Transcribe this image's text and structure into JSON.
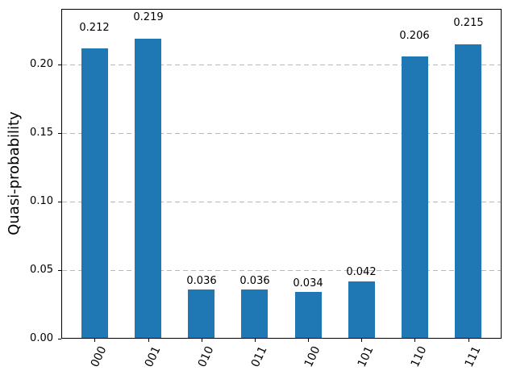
{
  "chart_data": {
    "type": "bar",
    "title": "",
    "categories": [
      "000",
      "001",
      "010",
      "011",
      "100",
      "101",
      "110",
      "111"
    ],
    "values": [
      0.212,
      0.219,
      0.036,
      0.036,
      0.034,
      0.042,
      0.206,
      0.215
    ],
    "bar_labels": [
      "0.212",
      "0.219",
      "0.036",
      "0.036",
      "0.034",
      "0.042",
      "0.206",
      "0.215"
    ],
    "xlabel": "",
    "ylabel": "Quasi-probability",
    "ytick_labels": [
      "0.00",
      "0.05",
      "0.10",
      "0.15",
      "0.20"
    ],
    "ytick_values": [
      0.0,
      0.05,
      0.1,
      0.15,
      0.2
    ],
    "ylim": [
      0,
      0.2406
    ],
    "xtick_rotation_deg": 65,
    "grid": "horizontal-dashed",
    "legend": "none",
    "bar_color": "#1f77b4",
    "grid_color": "#b8b8b8",
    "axis_color": "#000000"
  }
}
